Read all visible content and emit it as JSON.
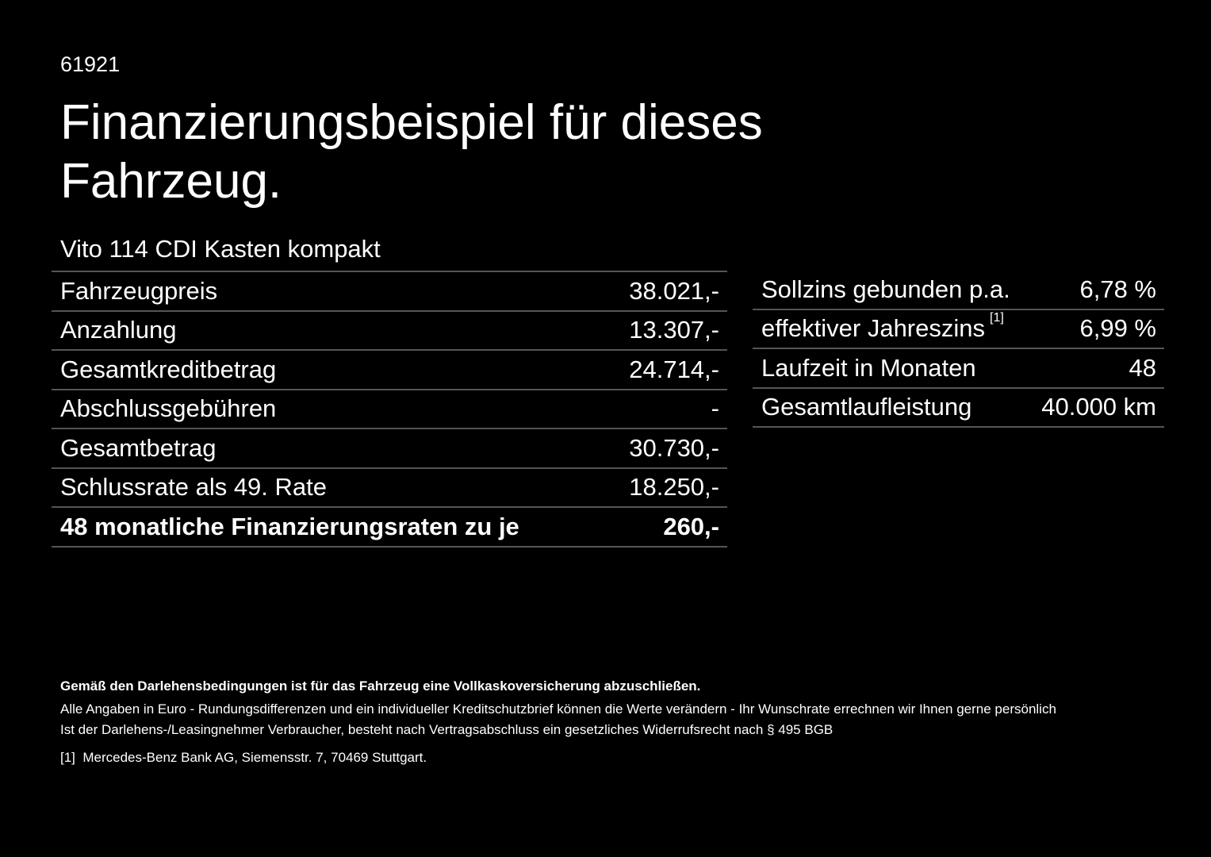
{
  "code": "61921",
  "title": "Finanzierungsbeispiel für dieses Fahrzeug.",
  "model": "Vito 114 CDI Kasten kompakt",
  "left_rows": [
    {
      "label": "Fahrzeugpreis",
      "value": "38.021,-"
    },
    {
      "label": "Anzahlung",
      "value": "13.307,-"
    },
    {
      "label": "Gesamtkreditbetrag",
      "value": "24.714,-"
    },
    {
      "label": "Abschlussgebühren",
      "value": "-"
    },
    {
      "label": "Gesamtbetrag",
      "value": "30.730,-"
    },
    {
      "label": "Schlussrate als 49. Rate",
      "value": "18.250,-"
    },
    {
      "label": "48 monatliche Finanzierungsraten zu je",
      "value": "260,-"
    }
  ],
  "right_rows": [
    {
      "label": "Sollzins gebunden p.a.",
      "value": "6,78 %"
    },
    {
      "label": "effektiver Jahreszins",
      "sup": "[1]",
      "value": "6,99 %"
    },
    {
      "label": "Laufzeit in Monaten",
      "value": "48"
    },
    {
      "label": "Gesamtlaufleistung",
      "value": "40.000 km"
    }
  ],
  "notes": {
    "bold": "Gemäß den Darlehensbedingungen ist für das Fahrzeug eine Vollkaskoversicherung abzuschließen.",
    "line1": "Alle Angaben in Euro - Rundungsdifferenzen und ein individueller Kreditschutzbrief können die Werte verändern - Ihr Wunschrate errechnen wir Ihnen gerne persönlich",
    "line2": "Ist der Darlehens-/Leasingnehmer Verbraucher, besteht nach Vertragsabschluss ein gesetzliches Widerrufsrecht nach § 495 BGB",
    "footnote_mark": "[1]",
    "footnote": "Mercedes-Benz Bank AG, Siemensstr. 7, 70469 Stuttgart."
  }
}
